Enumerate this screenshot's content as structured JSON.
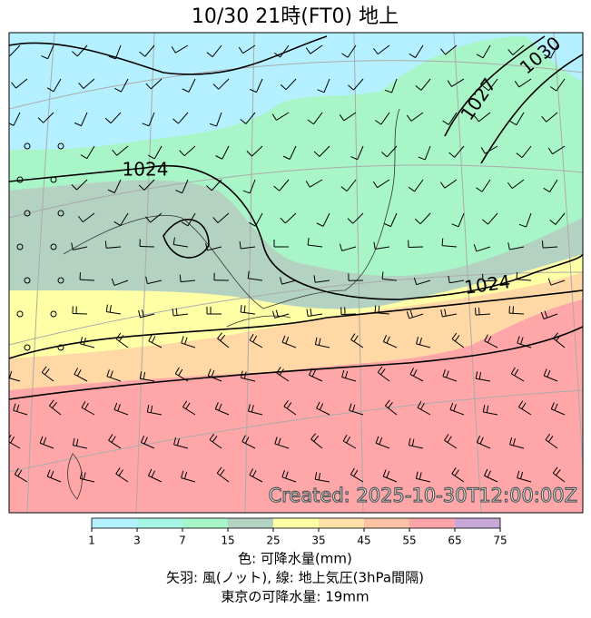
{
  "header": {
    "title": "10/30  21時(FT0)     地上"
  },
  "map": {
    "isobar_labels": [
      "1024",
      "1027",
      "1030",
      "1024"
    ],
    "stamp": "Created: 2025-10-30T12:00:00Z"
  },
  "colorbar": {
    "ticks": [
      "1",
      "3",
      "7",
      "15",
      "25",
      "35",
      "45",
      "55",
      "65",
      "75"
    ],
    "colors": [
      "#b4f0ff",
      "#a6f5e6",
      "#a8f5c8",
      "#b4d2c2",
      "#ffffa6",
      "#ffe0a6",
      "#ffc2a4",
      "#ffa4a8",
      "#c8a8d8"
    ]
  },
  "caption": {
    "lines": [
      "色: 可降水量(mm)",
      "矢羽: 風(ノット), 線: 地上気圧(3hPa間隔)",
      "東京の可降水量: 19mm"
    ]
  }
}
